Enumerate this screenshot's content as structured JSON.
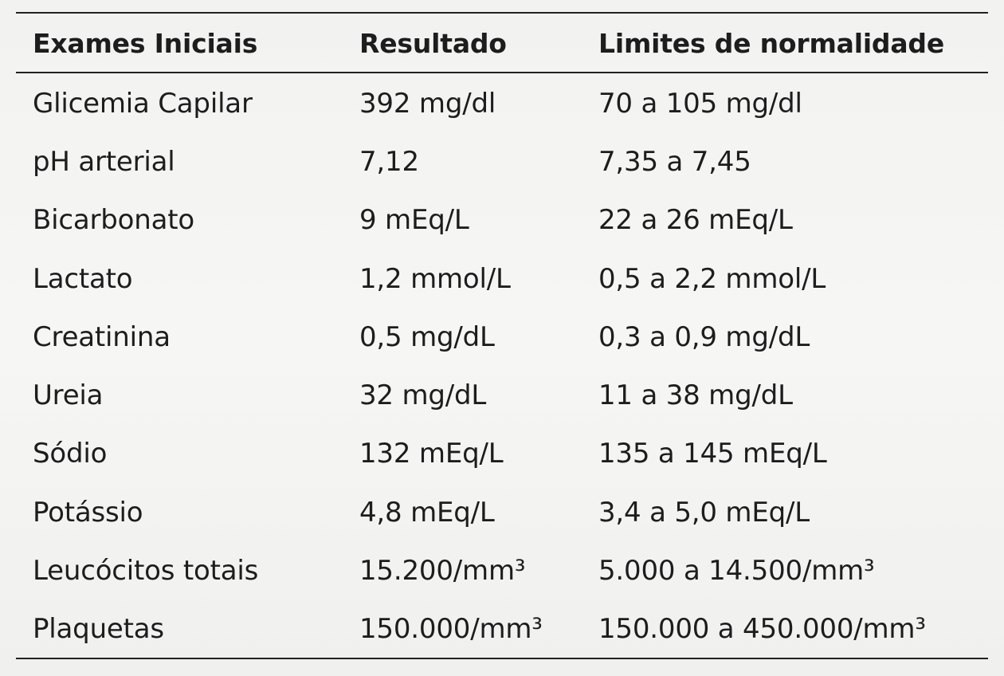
{
  "table": {
    "headers": [
      "Exames Iniciais",
      "Resultado",
      "Limites de normalidade"
    ],
    "rows": [
      [
        "Glicemia Capilar",
        "392 mg/dl",
        "70 a 105 mg/dl"
      ],
      [
        "pH arterial",
        "7,12",
        "7,35 a 7,45"
      ],
      [
        "Bicarbonato",
        "9 mEq/L",
        "22 a 26 mEq/L"
      ],
      [
        "Lactato",
        "1,2 mmol/L",
        "0,5 a 2,2 mmol/L"
      ],
      [
        "Creatinina",
        "0,5 mg/dL",
        "0,3 a 0,9 mg/dL"
      ],
      [
        "Ureia",
        "32 mg/dL",
        "11 a 38 mg/dL"
      ],
      [
        "Sódio",
        "132 mEq/L",
        "135 a 145 mEq/L"
      ],
      [
        "Potássio",
        "4,8 mEq/L",
        "3,4 a 5,0 mEq/L"
      ],
      [
        "Leucócitos totais",
        "15.200/mm³",
        "5.000 a 14.500/mm³"
      ],
      [
        "Plaquetas",
        "150.000/mm³",
        "150.000 a 450.000/mm³"
      ]
    ]
  }
}
